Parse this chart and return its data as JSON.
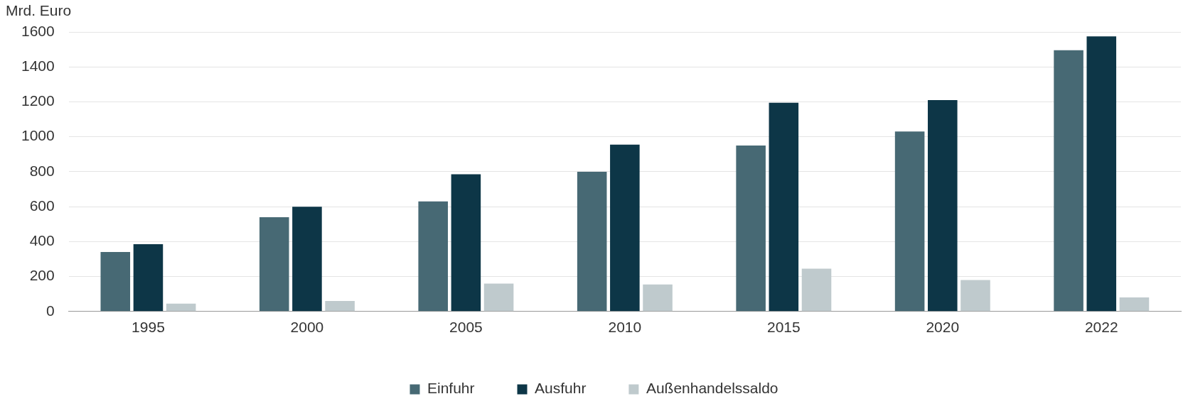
{
  "chart_data": {
    "type": "bar",
    "ylabel": "Mrd. Euro",
    "categories": [
      "1995",
      "2000",
      "2005",
      "2010",
      "2015",
      "2020",
      "2022"
    ],
    "series": [
      {
        "name": "Einfuhr",
        "color": "#476974",
        "values": [
          340,
          540,
          630,
          800,
          950,
          1030,
          1495
        ]
      },
      {
        "name": "Ausfuhr",
        "color": "#0d3647",
        "values": [
          385,
          600,
          785,
          955,
          1195,
          1210,
          1575
        ]
      },
      {
        "name": "Außenhandelssaldo",
        "color": "#bfcacd",
        "values": [
          45,
          60,
          160,
          155,
          245,
          180,
          80
        ]
      }
    ],
    "ylim": [
      0,
      1600
    ],
    "yticks": [
      0,
      200,
      400,
      600,
      800,
      1000,
      1200,
      1400,
      1600
    ],
    "grid": "y",
    "legend": "bottom"
  }
}
